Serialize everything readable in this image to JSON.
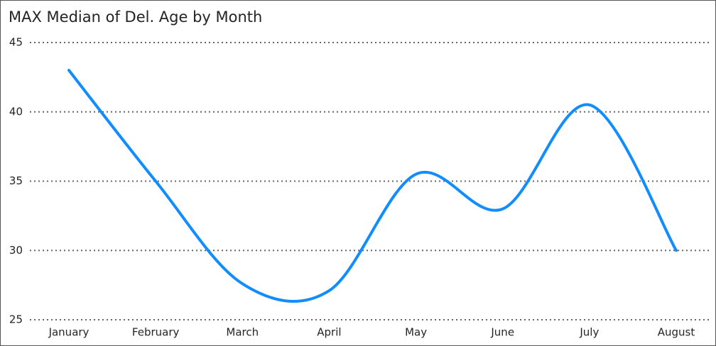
{
  "chart_data": {
    "type": "line",
    "title": "MAX Median of Del. Age by Month",
    "categories": [
      "January",
      "February",
      "March",
      "April",
      "May",
      "June",
      "July",
      "August"
    ],
    "values": [
      43,
      35,
      27.6,
      27.1,
      35.5,
      33,
      40.5,
      30
    ],
    "color": "#118dff",
    "smooth": true,
    "ylim": [
      25,
      45
    ],
    "yticks": [
      25,
      30,
      35,
      40,
      45
    ],
    "grid": true
  }
}
